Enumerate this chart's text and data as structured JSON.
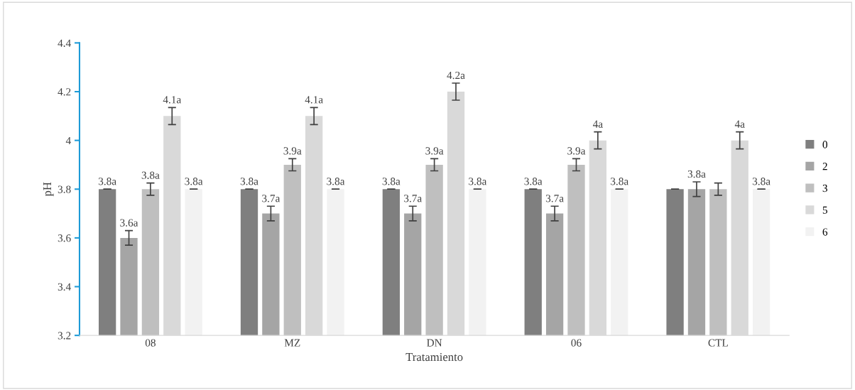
{
  "chart_data": {
    "type": "bar",
    "xlabel": "Tratamiento",
    "ylabel": "pH",
    "categories": [
      "08",
      "MZ",
      "DN",
      "06",
      "CTL"
    ],
    "ylim": [
      3.2,
      4.4
    ],
    "yticks": [
      {
        "value": 3.2,
        "label": "3.2"
      },
      {
        "value": 3.4,
        "label": "3.4"
      },
      {
        "value": 3.6,
        "label": "3.6"
      },
      {
        "value": 3.8,
        "label": "3.8"
      },
      {
        "value": 4.0,
        "label": "4"
      },
      {
        "value": 4.2,
        "label": "4.2"
      },
      {
        "value": 4.4,
        "label": "4.4"
      }
    ],
    "grid": false,
    "legend": "right",
    "series": [
      {
        "name": "0",
        "color": "#7f7f7f",
        "values": [
          3.8,
          3.8,
          3.8,
          3.8,
          3.8
        ],
        "errors": [
          0,
          0,
          0,
          0,
          0
        ],
        "value_labels": [
          "3.8a",
          "3.8a",
          "3.8a",
          "3.8a",
          null
        ]
      },
      {
        "name": "2",
        "color": "#a5a5a5",
        "values": [
          3.6,
          3.7,
          3.7,
          3.7,
          3.8
        ],
        "errors": [
          0.03,
          0.03,
          0.03,
          0.03,
          0.03
        ],
        "value_labels": [
          "3.6a",
          "3.7a",
          "3.7a",
          "3.7a",
          "3.8a"
        ]
      },
      {
        "name": "3",
        "color": "#bfbfbf",
        "values": [
          3.8,
          3.9,
          3.9,
          3.9,
          3.8
        ],
        "errors": [
          0.025,
          0.025,
          0.025,
          0.025,
          0.025
        ],
        "value_labels": [
          "3.8a",
          "3.9a",
          "3.9a",
          "3.9a",
          null
        ]
      },
      {
        "name": "5",
        "color": "#d9d9d9",
        "values": [
          4.1,
          4.1,
          4.2,
          4.0,
          4.0
        ],
        "errors": [
          0.035,
          0.035,
          0.035,
          0.035,
          0.035
        ],
        "value_labels": [
          "4.1a",
          "4.1a",
          "4.2a",
          "4a",
          "4a"
        ]
      },
      {
        "name": "6",
        "color": "#f2f2f2",
        "values": [
          3.8,
          3.8,
          3.8,
          3.8,
          3.8
        ],
        "errors": [
          0,
          0,
          0,
          0,
          0
        ],
        "value_labels": [
          "3.8a",
          "3.8a",
          "3.8a",
          "3.8a",
          "3.8a"
        ]
      }
    ]
  }
}
